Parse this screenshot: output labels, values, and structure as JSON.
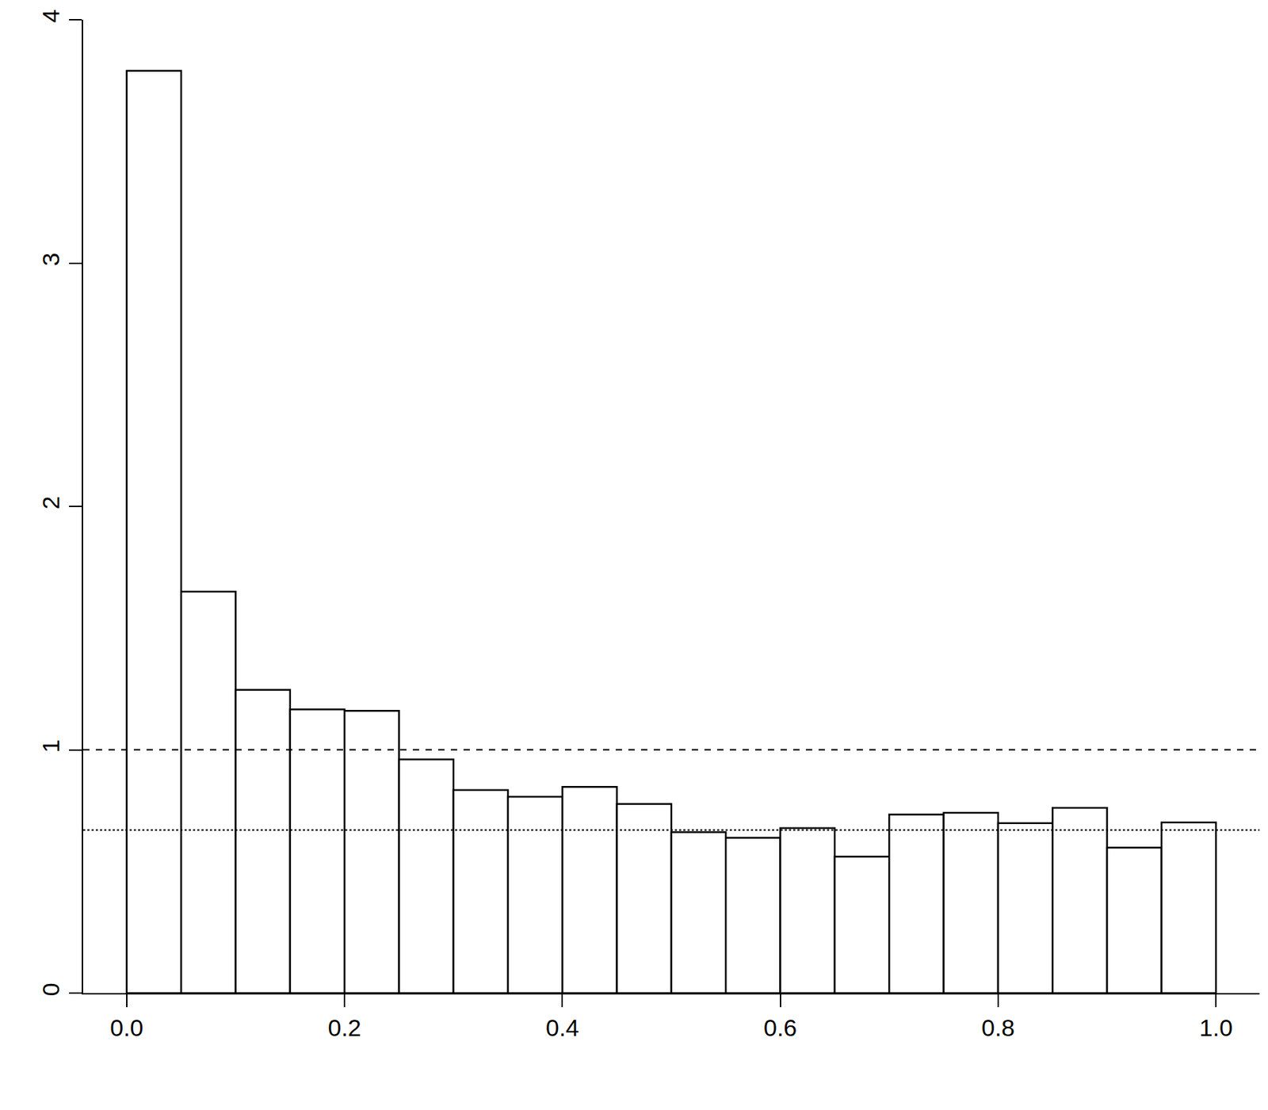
{
  "chart_data": {
    "type": "histogram",
    "bins": [
      0,
      0.05,
      0.1,
      0.15,
      0.2,
      0.25,
      0.3,
      0.35,
      0.4,
      0.45,
      0.5,
      0.55,
      0.6,
      0.65,
      0.7,
      0.75,
      0.8,
      0.85,
      0.9,
      0.95,
      1
    ],
    "values": [
      3.79,
      1.65,
      1.246,
      1.166,
      1.16,
      0.96,
      0.834,
      0.807,
      0.847,
      0.777,
      0.661,
      0.638,
      0.678,
      0.561,
      0.734,
      0.741,
      0.698,
      0.761,
      0.598,
      0.701
    ],
    "color": "#ffffff",
    "xlim": [
      -0.04,
      1.04
    ],
    "xticks": [
      {
        "value": 0,
        "label": "0.0"
      },
      0.2,
      0.4,
      0.6,
      0.8,
      {
        "value": 1,
        "label": "1.0"
      }
    ],
    "ylim": [
      0,
      4
    ],
    "yticks": [
      0,
      1,
      2,
      3,
      4
    ],
    "grid": false,
    "hlines": [
      {
        "y": 1,
        "line_style": "dashed"
      },
      {
        "y": 0.67,
        "line_style": "dotted"
      }
    ]
  }
}
